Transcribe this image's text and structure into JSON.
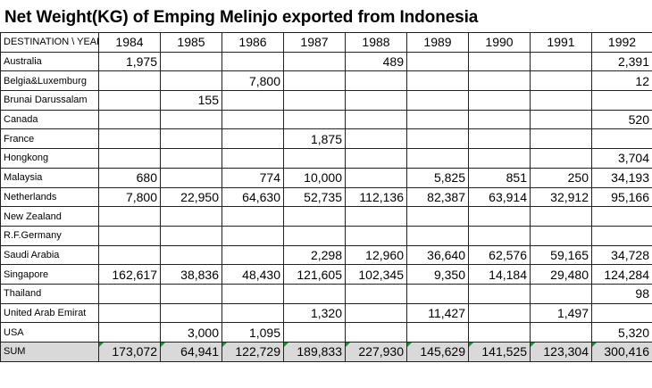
{
  "title": "Net Weight(KG) of Emping Melinjo exported from Indonesia",
  "header": {
    "corner": "DESTINATION \\ YEAR",
    "years": [
      "1984",
      "1985",
      "1986",
      "1987",
      "1988",
      "1989",
      "1990",
      "1991",
      "1992"
    ]
  },
  "rows": [
    {
      "destination": "Australia",
      "values": [
        "1,975",
        "",
        "",
        "",
        "489",
        "",
        "",
        "",
        "2,391"
      ]
    },
    {
      "destination": "Belgia&Luxemburg",
      "values": [
        "",
        "",
        "7,800",
        "",
        "",
        "",
        "",
        "",
        "12"
      ]
    },
    {
      "destination": "Brunai Darussalam",
      "values": [
        "",
        "155",
        "",
        "",
        "",
        "",
        "",
        "",
        ""
      ]
    },
    {
      "destination": "Canada",
      "values": [
        "",
        "",
        "",
        "",
        "",
        "",
        "",
        "",
        "520"
      ]
    },
    {
      "destination": "France",
      "values": [
        "",
        "",
        "",
        "1,875",
        "",
        "",
        "",
        "",
        ""
      ]
    },
    {
      "destination": "Hongkong",
      "values": [
        "",
        "",
        "",
        "",
        "",
        "",
        "",
        "",
        "3,704"
      ]
    },
    {
      "destination": "Malaysia",
      "values": [
        "680",
        "",
        "774",
        "10,000",
        "",
        "5,825",
        "851",
        "250",
        "34,193"
      ]
    },
    {
      "destination": "Netherlands",
      "values": [
        "7,800",
        "22,950",
        "64,630",
        "52,735",
        "112,136",
        "82,387",
        "63,914",
        "32,912",
        "95,166"
      ]
    },
    {
      "destination": "New Zealand",
      "values": [
        "",
        "",
        "",
        "",
        "",
        "",
        "",
        "",
        ""
      ]
    },
    {
      "destination": "R.F.Germany",
      "values": [
        "",
        "",
        "",
        "",
        "",
        "",
        "",
        "",
        ""
      ]
    },
    {
      "destination": "Saudi Arabia",
      "values": [
        "",
        "",
        "",
        "2,298",
        "12,960",
        "36,640",
        "62,576",
        "59,165",
        "34,728"
      ]
    },
    {
      "destination": "Singapore",
      "values": [
        "162,617",
        "38,836",
        "48,430",
        "121,605",
        "102,345",
        "9,350",
        "14,184",
        "29,480",
        "124,284"
      ]
    },
    {
      "destination": "Thailand",
      "values": [
        "",
        "",
        "",
        "",
        "",
        "",
        "",
        "",
        "98"
      ]
    },
    {
      "destination": "United Arab Emirat",
      "values": [
        "",
        "",
        "",
        "1,320",
        "",
        "11,427",
        "",
        "1,497",
        ""
      ]
    },
    {
      "destination": "USA",
      "values": [
        "",
        "3,000",
        "1,095",
        "",
        "",
        "",
        "",
        "",
        "5,320"
      ]
    }
  ],
  "sum": {
    "label": "SUM",
    "values": [
      "173,072",
      "64,941",
      "122,729",
      "189,833",
      "227,930",
      "145,629",
      "141,525",
      "123,304",
      "300,416"
    ]
  },
  "colors": {
    "sum_row_background": "#d9d9d9",
    "formula_marker": "#1e8a3a",
    "grid_lines": "#222222"
  }
}
